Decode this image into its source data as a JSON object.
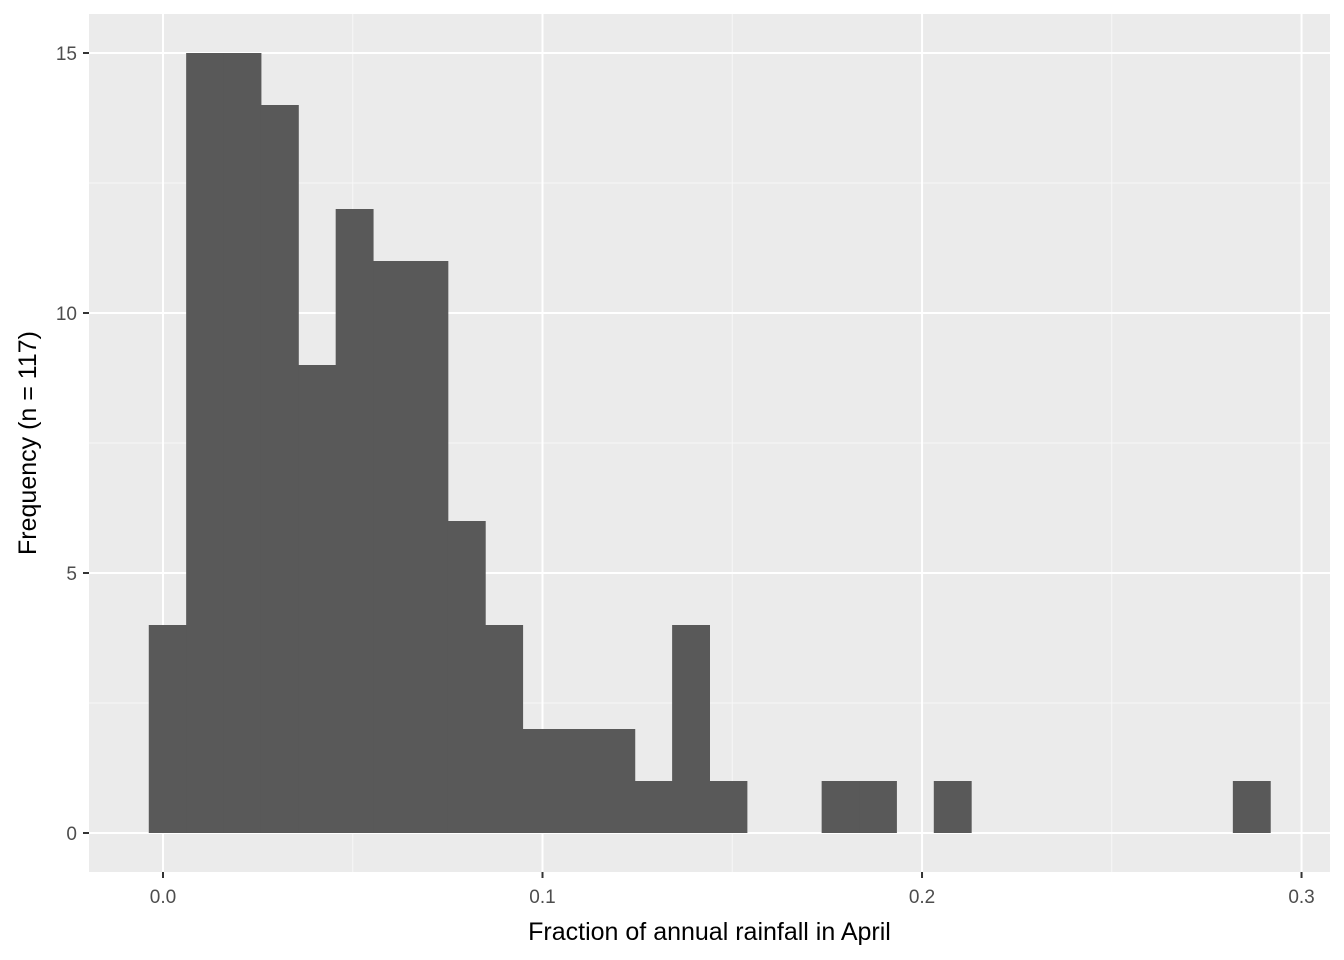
{
  "chart_data": {
    "type": "bar",
    "subtype": "histogram",
    "xlabel": "Fraction of annual rainfall in April",
    "ylabel": "Frequency (n = 117)",
    "xlim": [
      -0.0195,
      0.3075
    ],
    "ylim": [
      -0.75,
      15.75
    ],
    "x_ticks": [
      0.0,
      0.1,
      0.2,
      0.3
    ],
    "x_tick_labels": [
      "0.0",
      "0.1",
      "0.2",
      "0.3"
    ],
    "y_ticks": [
      0,
      5,
      10,
      15
    ],
    "y_tick_labels": [
      "0",
      "5",
      "10",
      "15"
    ],
    "x_minor_ticks": [
      0.05,
      0.15,
      0.25
    ],
    "y_minor_ticks": [
      2.5,
      7.5,
      12.5
    ],
    "bin_width": 0.00985,
    "bins": [
      {
        "start": -0.00375,
        "end": 0.0061,
        "count": 4
      },
      {
        "start": 0.0061,
        "end": 0.01595,
        "count": 15
      },
      {
        "start": 0.01595,
        "end": 0.0258,
        "count": 15
      },
      {
        "start": 0.0258,
        "end": 0.03565,
        "count": 14
      },
      {
        "start": 0.03565,
        "end": 0.0455,
        "count": 9
      },
      {
        "start": 0.0455,
        "end": 0.05535,
        "count": 12
      },
      {
        "start": 0.05535,
        "end": 0.0652,
        "count": 11
      },
      {
        "start": 0.0652,
        "end": 0.07505,
        "count": 11
      },
      {
        "start": 0.07505,
        "end": 0.0849,
        "count": 6
      },
      {
        "start": 0.0849,
        "end": 0.09475,
        "count": 4
      },
      {
        "start": 0.09475,
        "end": 0.1046,
        "count": 2
      },
      {
        "start": 0.1046,
        "end": 0.11445,
        "count": 2
      },
      {
        "start": 0.11445,
        "end": 0.1243,
        "count": 2
      },
      {
        "start": 0.1243,
        "end": 0.13415,
        "count": 1
      },
      {
        "start": 0.13415,
        "end": 0.144,
        "count": 4
      },
      {
        "start": 0.144,
        "end": 0.15385,
        "count": 1
      },
      {
        "start": 0.15385,
        "end": 0.1637,
        "count": 0
      },
      {
        "start": 0.1637,
        "end": 0.17355,
        "count": 0
      },
      {
        "start": 0.17355,
        "end": 0.1834,
        "count": 1
      },
      {
        "start": 0.1834,
        "end": 0.19325,
        "count": 1
      },
      {
        "start": 0.19325,
        "end": 0.2031,
        "count": 0
      },
      {
        "start": 0.2031,
        "end": 0.21295,
        "count": 1
      },
      {
        "start": 0.21295,
        "end": 0.2228,
        "count": 0
      },
      {
        "start": 0.2228,
        "end": 0.23265,
        "count": 0
      },
      {
        "start": 0.23265,
        "end": 0.2425,
        "count": 0
      },
      {
        "start": 0.2425,
        "end": 0.25235,
        "count": 0
      },
      {
        "start": 0.25235,
        "end": 0.2622,
        "count": 0
      },
      {
        "start": 0.2622,
        "end": 0.27205,
        "count": 0
      },
      {
        "start": 0.27205,
        "end": 0.2819,
        "count": 0
      },
      {
        "start": 0.2819,
        "end": 0.29175,
        "count": 1
      }
    ],
    "grid": true,
    "colors": {
      "panel_background": "#ebebeb",
      "grid_major": "#ffffff",
      "grid_minor": "#f7f7f7",
      "bar_fill": "#595959",
      "tick_color": "#333333"
    }
  }
}
